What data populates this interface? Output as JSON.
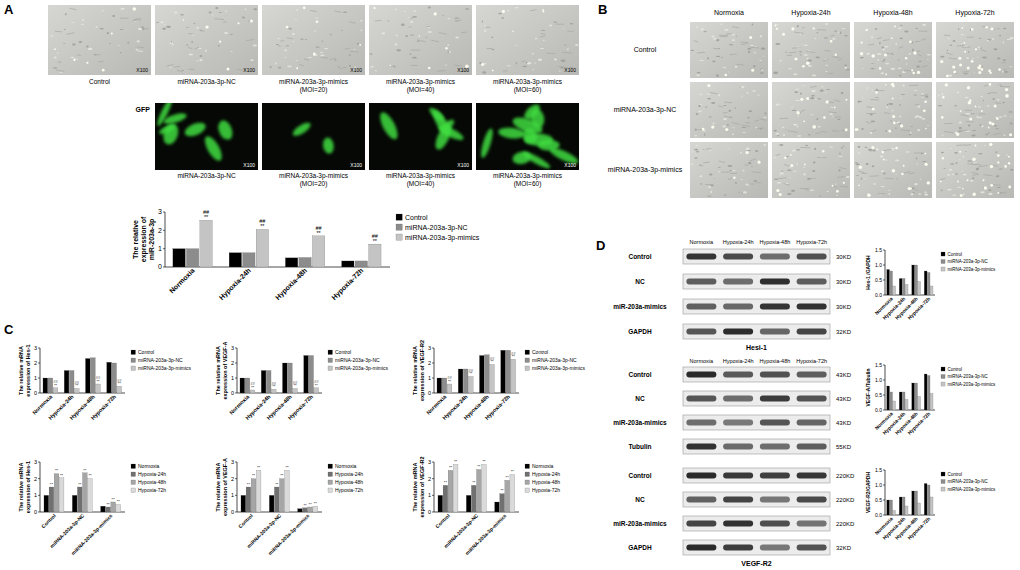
{
  "figure": {
    "panel_labels": [
      "A",
      "B",
      "C",
      "D"
    ]
  },
  "panel_a": {
    "images": [
      {
        "label": "Control",
        "magnification": "X100"
      },
      {
        "label": "miRNA-203a-3p-NC",
        "magnification": "X100"
      },
      {
        "label": "miRNA-203a-3p-mimics (MOI=20)",
        "magnification": "X100"
      },
      {
        "label": "miRNA-203a-3p-mimics (MOI=40)",
        "magnification": "X100"
      },
      {
        "label": "miRNA-203a-3p-mimics (MOI=60)",
        "magnification": "X100"
      }
    ],
    "gfp_label": "GFP",
    "gfp_images": [
      {
        "label": "miRNA-203a-3p-NC",
        "magnification": "X100"
      },
      {
        "label": "miRNA-203a-3p-mimics (MOI=20)",
        "magnification": "X100"
      },
      {
        "label": "miRNA-203a-3p-mimics (MOI=40)",
        "magnification": "X100"
      },
      {
        "label": "miRNA-203a-3p-mimics (MOI=60)",
        "magnification": "X100"
      }
    ]
  },
  "panel_b": {
    "columns": [
      "Normoxia",
      "Hypoxia-24h",
      "Hypoxia-48h",
      "Hypoxia-72h"
    ],
    "rows": [
      "Control",
      "miRNA-203a-3p-NC",
      "miRNA-203a-3p-mimics"
    ]
  },
  "panel_d": {
    "blots": [
      {
        "title": "Hesi-1",
        "columns": [
          "Normoxia",
          "Hypoxia-24h",
          "Hypoxia-48h",
          "Hypoxia-72h"
        ],
        "rows": [
          {
            "label": "Control",
            "size": "30KD"
          },
          {
            "label": "NC",
            "size": "30KD"
          },
          {
            "label": "miR-203a-mimics",
            "size": "30KD"
          },
          {
            "label": "GAPDH",
            "size": "32KD"
          }
        ]
      },
      {
        "columns": [
          "Normoxia",
          "Hypoxia-24h",
          "Hypoxia-48h",
          "Hypoxia-72h"
        ],
        "rows": [
          {
            "label": "Control",
            "size": "43KD"
          },
          {
            "label": "NC",
            "size": "43KD"
          },
          {
            "label": "miR-203a-mimics",
            "size": "43KD"
          },
          {
            "label": "Tubulin",
            "size": "55KD"
          }
        ]
      },
      {
        "title": "VEGF-R2",
        "rows": [
          {
            "label": "Control",
            "size": "220KD"
          },
          {
            "label": "NC",
            "size": "220KD"
          },
          {
            "label": "miR-203a-mimics",
            "size": "220KD"
          },
          {
            "label": "GAPDH",
            "size": "32KD"
          }
        ]
      }
    ]
  },
  "chart_data": [
    {
      "type": "bar",
      "y_label": "The relative expression of miR-203a-3p",
      "categories": [
        "Normoxia",
        "Hypoxia-24h",
        "Hypoxia-48h",
        "Hypoxia-72h"
      ],
      "ylim": [
        0,
        3
      ],
      "yticks": [
        0,
        1,
        2,
        3
      ],
      "grid": false,
      "legend": "right",
      "series": [
        {
          "name": "Control",
          "color": "#000000",
          "values": [
            1.0,
            0.78,
            0.5,
            0.33
          ]
        },
        {
          "name": "miRNA-203a-3p-NC",
          "color": "#8c8c8c",
          "values": [
            1.0,
            0.78,
            0.52,
            0.33
          ]
        },
        {
          "name": "miRNA-203a-3p-mimics",
          "color": "#c4c4c4",
          "values": [
            2.55,
            2.05,
            1.7,
            1.25
          ],
          "annotations": [
            [
              "##",
              "**"
            ],
            [
              "##",
              "**"
            ],
            [
              "##",
              "**"
            ],
            [
              "##",
              "**"
            ]
          ]
        }
      ]
    },
    {
      "type": "bar",
      "y_label": "The relative mRNA expression of Hes-1",
      "categories": [
        "Normoxia",
        "Hypoxia-24h",
        "Hypoxia-48h",
        "Hypoxia-72h"
      ],
      "ylim": [
        0,
        3
      ],
      "yticks": [
        0,
        1,
        2,
        3
      ],
      "grid": false,
      "legend": "right",
      "series": [
        {
          "name": "Control",
          "color": "#000000",
          "values": [
            1.0,
            1.5,
            2.3,
            2.05
          ]
        },
        {
          "name": "miRNA-203a-3p-NC",
          "color": "#8c8c8c",
          "values": [
            1.0,
            1.5,
            2.35,
            2.0
          ]
        },
        {
          "name": "miRNA-203a-3p-mimics",
          "color": "#c4c4c4",
          "values": [
            0.35,
            0.3,
            0.6,
            0.45
          ],
          "annotations": [
            [
              "##",
              "**"
            ],
            [
              "##",
              "**"
            ],
            [
              "##",
              "**"
            ],
            [
              "##",
              "**"
            ]
          ]
        }
      ]
    },
    {
      "type": "bar",
      "y_label": "The relative mRNA expression of VEGF-A",
      "categories": [
        "Normoxia",
        "Hypoxia-24h",
        "Hypoxia-48h",
        "Hypoxia-72h"
      ],
      "ylim": [
        0,
        3
      ],
      "yticks": [
        0,
        1,
        2,
        3
      ],
      "grid": false,
      "legend": "right",
      "series": [
        {
          "name": "Control",
          "color": "#000000",
          "values": [
            1.0,
            1.5,
            2.0,
            2.5
          ]
        },
        {
          "name": "miRNA-203a-3p-NC",
          "color": "#8c8c8c",
          "values": [
            1.0,
            1.5,
            2.0,
            2.5
          ]
        },
        {
          "name": "miRNA-203a-3p-mimics",
          "color": "#c4c4c4",
          "values": [
            0.2,
            0.25,
            0.3,
            0.35
          ],
          "annotations": [
            [
              "##",
              "**"
            ],
            [
              "##",
              "**"
            ],
            [
              "##",
              "**"
            ],
            [
              "##",
              "**"
            ]
          ]
        }
      ]
    },
    {
      "type": "bar",
      "y_label": "The relative mRNA expression of VEGF-R2",
      "categories": [
        "Normoxia",
        "Hypoxia-24h",
        "Hypoxia-48h",
        "Hypoxia-72h"
      ],
      "ylim": [
        0,
        3
      ],
      "yticks": [
        0,
        1,
        2,
        3
      ],
      "grid": false,
      "legend": "right",
      "series": [
        {
          "name": "Control",
          "color": "#000000",
          "values": [
            1.0,
            1.6,
            2.5,
            2.85
          ]
        },
        {
          "name": "miRNA-203a-3p-NC",
          "color": "#8c8c8c",
          "values": [
            1.0,
            1.6,
            2.55,
            2.85
          ]
        },
        {
          "name": "miRNA-203a-3p-mimics",
          "color": "#c4c4c4",
          "values": [
            0.6,
            1.1,
            1.9,
            2.25
          ],
          "annotations": [
            [
              "##",
              "**"
            ],
            [
              "##",
              "**"
            ],
            [
              "##",
              "**"
            ],
            [
              "##",
              "**"
            ]
          ]
        }
      ]
    },
    {
      "type": "bar",
      "y_label": "The relative mRNA expression of Hes-1",
      "categories": [
        "Control",
        "miRNA-203a-3p-NC",
        "miRNA-203a-3p-mimics"
      ],
      "ylim": [
        0,
        3
      ],
      "yticks": [
        0,
        1,
        2,
        3
      ],
      "grid": false,
      "legend": "right",
      "series": [
        {
          "name": "Normoxia",
          "color": "#000000",
          "values": [
            1.0,
            1.0,
            0.35
          ]
        },
        {
          "name": "Hypoxia-24h",
          "color": "#707070",
          "values": [
            1.5,
            1.5,
            0.3
          ],
          "annotations": [
            [
              "**"
            ],
            [
              "**"
            ],
            [
              "**"
            ]
          ]
        },
        {
          "name": "Hypoxia-48h",
          "color": "#a6a6a6",
          "values": [
            2.3,
            2.35,
            0.6
          ],
          "annotations": [
            [
              "**"
            ],
            [
              "**"
            ],
            [
              "**"
            ]
          ]
        },
        {
          "name": "Hypoxia-72h",
          "color": "#dadada",
          "values": [
            2.05,
            2.0,
            0.45
          ],
          "annotations": [
            [
              "**"
            ],
            [
              "**"
            ],
            [
              "**"
            ]
          ]
        }
      ]
    },
    {
      "type": "bar",
      "y_label": "The relative mRNA expression of VEGF-A",
      "categories": [
        "Control",
        "miRNA-203a-3p-NC",
        "miRNA-203a-3p-mimics"
      ],
      "ylim": [
        0,
        3
      ],
      "yticks": [
        0,
        1,
        2,
        3
      ],
      "grid": false,
      "legend": "right",
      "series": [
        {
          "name": "Normoxia",
          "color": "#000000",
          "values": [
            1.0,
            1.0,
            0.2
          ]
        },
        {
          "name": "Hypoxia-24h",
          "color": "#707070",
          "values": [
            1.5,
            1.5,
            0.25
          ],
          "annotations": [
            [
              "**"
            ],
            [
              "**"
            ],
            [
              "**"
            ]
          ]
        },
        {
          "name": "Hypoxia-48h",
          "color": "#a6a6a6",
          "values": [
            2.0,
            2.0,
            0.3
          ],
          "annotations": [
            [
              "**"
            ],
            [
              "**"
            ],
            [
              "**"
            ]
          ]
        },
        {
          "name": "Hypoxia-72h",
          "color": "#dadada",
          "values": [
            2.5,
            2.5,
            0.35
          ],
          "annotations": [
            [
              "**"
            ],
            [
              "**"
            ],
            [
              "**"
            ]
          ]
        }
      ]
    },
    {
      "type": "bar",
      "y_label": "The relative mRNA expression of VEGF-R2",
      "categories": [
        "Control",
        "miRNA-203a-3p-NC",
        "miRNA-203a-3p-mimics"
      ],
      "ylim": [
        0,
        3
      ],
      "yticks": [
        0,
        1,
        2,
        3
      ],
      "grid": false,
      "legend": "right",
      "series": [
        {
          "name": "Normoxia",
          "color": "#000000",
          "values": [
            1.0,
            1.0,
            0.6
          ]
        },
        {
          "name": "Hypoxia-24h",
          "color": "#707070",
          "values": [
            1.6,
            1.6,
            1.1
          ],
          "annotations": [
            [
              "**"
            ],
            [
              "**"
            ],
            [
              "**"
            ]
          ]
        },
        {
          "name": "Hypoxia-48h",
          "color": "#a6a6a6",
          "values": [
            2.5,
            2.55,
            1.9
          ],
          "annotations": [
            [
              "**"
            ],
            [
              "**"
            ],
            [
              "**"
            ]
          ]
        },
        {
          "name": "Hypoxia-72h",
          "color": "#dadada",
          "values": [
            2.85,
            2.85,
            2.25
          ],
          "annotations": [
            [
              "**"
            ],
            [
              "**"
            ],
            [
              "**"
            ]
          ]
        }
      ]
    },
    {
      "type": "bar",
      "y_label": "Hes-1 /GAPDH",
      "categories": [
        "Normoxia",
        "Hypoxia-24h",
        "Hypoxia-48h",
        "Hypoxia-72h"
      ],
      "ylim": [
        0,
        1.5
      ],
      "yticks": [
        {
          "value": 0,
          "label": "0.0"
        },
        0.5,
        {
          "value": 1,
          "label": "1.0"
        },
        1.5
      ],
      "grid": false,
      "legend": "right",
      "series": [
        {
          "name": "Control",
          "color": "#000000",
          "values": [
            0.85,
            0.55,
            1.0,
            0.8
          ]
        },
        {
          "name": "miRNA-203a-3p-NC",
          "color": "#8c8c8c",
          "values": [
            0.8,
            0.55,
            1.0,
            0.75
          ]
        },
        {
          "name": "miRNA-203a-3p-mimics",
          "color": "#c4c4c4",
          "values": [
            0.3,
            0.35,
            0.45,
            0.3
          ]
        }
      ]
    },
    {
      "type": "bar",
      "y_label": "VEGF-A/Tubulin",
      "categories": [
        "Normoxia",
        "Hypoxia-24h",
        "Hypoxia-48h",
        "Hypoxia-72h"
      ],
      "ylim": [
        0,
        1.5
      ],
      "yticks": [
        {
          "value": 0,
          "label": "0.0"
        },
        0.5,
        {
          "value": 1,
          "label": "1.0"
        },
        1.5
      ],
      "grid": false,
      "legend": "right",
      "series": [
        {
          "name": "Control",
          "color": "#000000",
          "values": [
            0.8,
            0.6,
            0.9,
            1.2
          ]
        },
        {
          "name": "miRNA-203a-3p-NC",
          "color": "#8c8c8c",
          "values": [
            0.6,
            0.6,
            0.9,
            1.15
          ]
        },
        {
          "name": "miRNA-203a-3p-mimics",
          "color": "#c4c4c4",
          "values": [
            0.3,
            0.35,
            0.45,
            0.55
          ]
        }
      ]
    },
    {
      "type": "bar",
      "y_label": "VEGF-R2/GAPDH",
      "categories": [
        "Normoxia",
        "Hypoxia-24h",
        "Hypoxia-48h",
        "Hypoxia-72h"
      ],
      "ylim": [
        0,
        1.5
      ],
      "yticks": [
        {
          "value": 0,
          "label": "0.0"
        },
        0.5,
        {
          "value": 1,
          "label": "1.0"
        },
        1.5
      ],
      "grid": false,
      "legend": "right",
      "series": [
        {
          "name": "Control",
          "color": "#000000",
          "values": [
            0.5,
            0.6,
            0.8,
            1.05
          ]
        },
        {
          "name": "miRNA-203a-3p-NC",
          "color": "#8c8c8c",
          "values": [
            0.5,
            0.6,
            0.8,
            1.0
          ]
        },
        {
          "name": "miRNA-203a-3p-mimics",
          "color": "#c4c4c4",
          "values": [
            0.15,
            0.3,
            0.4,
            0.6
          ]
        }
      ]
    }
  ]
}
